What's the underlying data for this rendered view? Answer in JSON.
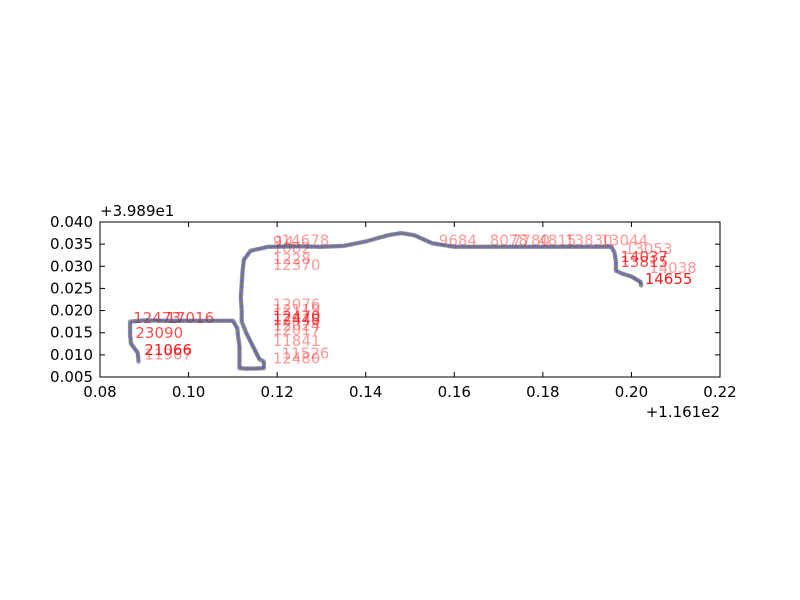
{
  "chart_data": {
    "type": "scatter",
    "title": "",
    "xlabel": "",
    "ylabel": "",
    "x_offset_label": "+1.161e2",
    "y_offset_label": "+3.989e1",
    "xlim": [
      0.08,
      0.22
    ],
    "ylim": [
      0.005,
      0.04
    ],
    "x_ticks": [
      0.08,
      0.1,
      0.12,
      0.14,
      0.16,
      0.18,
      0.2,
      0.22
    ],
    "x_tick_labels": [
      "0.08",
      "0.10",
      "0.12",
      "0.14",
      "0.16",
      "0.18",
      "0.20",
      "0.22"
    ],
    "y_ticks": [
      0.005,
      0.01,
      0.015,
      0.02,
      0.025,
      0.03,
      0.035,
      0.04
    ],
    "y_tick_labels": [
      "0.005",
      "0.010",
      "0.015",
      "0.020",
      "0.025",
      "0.030",
      "0.035",
      "0.040"
    ],
    "grid": false,
    "colors": {
      "points": "#4040c0",
      "track": "#555555",
      "annotation": "#ff0000"
    },
    "route": [
      [
        0.0887,
        0.0085
      ],
      [
        0.0885,
        0.0105
      ],
      [
        0.087,
        0.0125
      ],
      [
        0.0868,
        0.0145
      ],
      [
        0.0868,
        0.0175
      ],
      [
        0.09,
        0.0178
      ],
      [
        0.095,
        0.0177
      ],
      [
        0.1,
        0.0177
      ],
      [
        0.105,
        0.0177
      ],
      [
        0.11,
        0.0177
      ],
      [
        0.111,
        0.016
      ],
      [
        0.1112,
        0.014
      ],
      [
        0.1115,
        0.012
      ],
      [
        0.1115,
        0.01
      ],
      [
        0.1115,
        0.008
      ],
      [
        0.1115,
        0.007
      ],
      [
        0.113,
        0.0069
      ],
      [
        0.115,
        0.0069
      ],
      [
        0.117,
        0.007
      ],
      [
        0.117,
        0.0085
      ],
      [
        0.116,
        0.009
      ],
      [
        0.115,
        0.011
      ],
      [
        0.113,
        0.015
      ],
      [
        0.112,
        0.0175
      ],
      [
        0.112,
        0.02
      ],
      [
        0.1118,
        0.023
      ],
      [
        0.112,
        0.026
      ],
      [
        0.1122,
        0.029
      ],
      [
        0.1125,
        0.0315
      ],
      [
        0.114,
        0.0335
      ],
      [
        0.118,
        0.0344
      ],
      [
        0.125,
        0.0345
      ],
      [
        0.13,
        0.0344
      ],
      [
        0.135,
        0.0346
      ],
      [
        0.14,
        0.0356
      ],
      [
        0.145,
        0.037
      ],
      [
        0.148,
        0.0375
      ],
      [
        0.151,
        0.037
      ],
      [
        0.155,
        0.0352
      ],
      [
        0.16,
        0.0344
      ],
      [
        0.165,
        0.0344
      ],
      [
        0.17,
        0.0344
      ],
      [
        0.175,
        0.0344
      ],
      [
        0.18,
        0.0344
      ],
      [
        0.185,
        0.0344
      ],
      [
        0.19,
        0.0344
      ],
      [
        0.1955,
        0.0344
      ],
      [
        0.1962,
        0.033
      ],
      [
        0.1965,
        0.031
      ],
      [
        0.1965,
        0.029
      ],
      [
        0.198,
        0.0283
      ],
      [
        0.2,
        0.0277
      ],
      [
        0.202,
        0.0265
      ],
      [
        0.2022,
        0.0257
      ]
    ],
    "annotations": [
      {
        "text": "9",
        "x": 0.119,
        "y": 0.0345,
        "alpha": 0.4
      },
      {
        "text": "14678",
        "x": 0.121,
        "y": 0.0347,
        "alpha": 0.4
      },
      {
        "text": "14",
        "x": 0.1195,
        "y": 0.0343,
        "alpha": 0.4
      },
      {
        "text": "1082",
        "x": 0.119,
        "y": 0.033,
        "alpha": 0.4
      },
      {
        "text": "1228",
        "x": 0.119,
        "y": 0.0305,
        "alpha": 0.4
      },
      {
        "text": "12370",
        "x": 0.119,
        "y": 0.0292,
        "alpha": 0.4
      },
      {
        "text": "12076",
        "x": 0.119,
        "y": 0.0202,
        "alpha": 0.4
      },
      {
        "text": "12119",
        "x": 0.119,
        "y": 0.019,
        "alpha": 0.4
      },
      {
        "text": "12024",
        "x": 0.119,
        "y": 0.0155,
        "alpha": 0.4
      },
      {
        "text": "12017",
        "x": 0.119,
        "y": 0.0145,
        "alpha": 0.4
      },
      {
        "text": "11841",
        "x": 0.119,
        "y": 0.012,
        "alpha": 0.4
      },
      {
        "text": "11526",
        "x": 0.121,
        "y": 0.0092,
        "alpha": 0.4
      },
      {
        "text": "12480",
        "x": 0.119,
        "y": 0.008,
        "alpha": 0.4
      },
      {
        "text": "12470",
        "x": 0.119,
        "y": 0.0175,
        "alpha": 0.7
      },
      {
        "text": "12448",
        "x": 0.119,
        "y": 0.0168,
        "alpha": 0.7
      },
      {
        "text": "12473",
        "x": 0.0875,
        "y": 0.0172,
        "alpha": 0.7
      },
      {
        "text": "17016",
        "x": 0.095,
        "y": 0.0172,
        "alpha": 0.7
      },
      {
        "text": "23090",
        "x": 0.088,
        "y": 0.0138,
        "alpha": 0.7
      },
      {
        "text": "21066",
        "x": 0.09,
        "y": 0.01,
        "alpha": 0.9
      },
      {
        "text": "11967",
        "x": 0.09,
        "y": 0.009,
        "alpha": 0.4
      },
      {
        "text": "9684",
        "x": 0.1565,
        "y": 0.0347,
        "alpha": 0.4
      },
      {
        "text": "8078",
        "x": 0.168,
        "y": 0.0347,
        "alpha": 0.4
      },
      {
        "text": "7780",
        "x": 0.173,
        "y": 0.0347,
        "alpha": 0.4
      },
      {
        "text": "4815",
        "x": 0.179,
        "y": 0.0347,
        "alpha": 0.4
      },
      {
        "text": "13830",
        "x": 0.185,
        "y": 0.0347,
        "alpha": 0.4
      },
      {
        "text": "13044",
        "x": 0.193,
        "y": 0.0347,
        "alpha": 0.4
      },
      {
        "text": "13053",
        "x": 0.1985,
        "y": 0.0328,
        "alpha": 0.4
      },
      {
        "text": "14037",
        "x": 0.1975,
        "y": 0.031,
        "alpha": 0.7
      },
      {
        "text": "13815",
        "x": 0.1975,
        "y": 0.0298,
        "alpha": 0.7
      },
      {
        "text": "14038",
        "x": 0.204,
        "y": 0.0285,
        "alpha": 0.4
      },
      {
        "text": "14655",
        "x": 0.203,
        "y": 0.026,
        "alpha": 0.9
      }
    ]
  }
}
